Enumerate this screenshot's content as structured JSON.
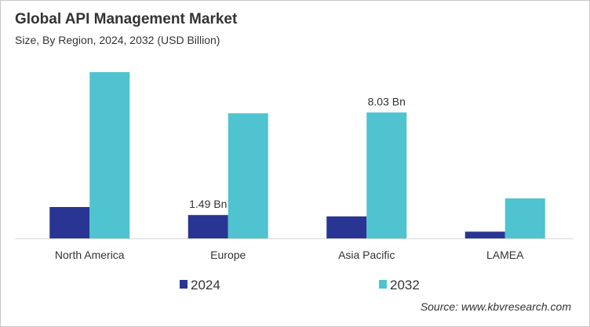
{
  "chart_data": {
    "type": "bar",
    "title": "Global API Management Market",
    "subtitle": "Size, By Region, 2024, 2032 (USD Billion)",
    "categories": [
      "North America",
      "Europe",
      "Asia Pacific",
      "LAMEA"
    ],
    "series": [
      {
        "name": "2024",
        "color": "#283593",
        "values": [
          2.0,
          1.49,
          1.4,
          0.43
        ],
        "labels": [
          "",
          "1.49 Bn",
          "",
          ""
        ]
      },
      {
        "name": "2032",
        "color": "#4FC3CF",
        "values": [
          10.6,
          7.98,
          8.03,
          2.55
        ],
        "labels": [
          "",
          "",
          "8.03 Bn",
          ""
        ]
      }
    ],
    "ylim": [
      0,
      11
    ],
    "grid": false,
    "legend": "bottom-center",
    "source": "Source: www.kbvresearch.com"
  }
}
